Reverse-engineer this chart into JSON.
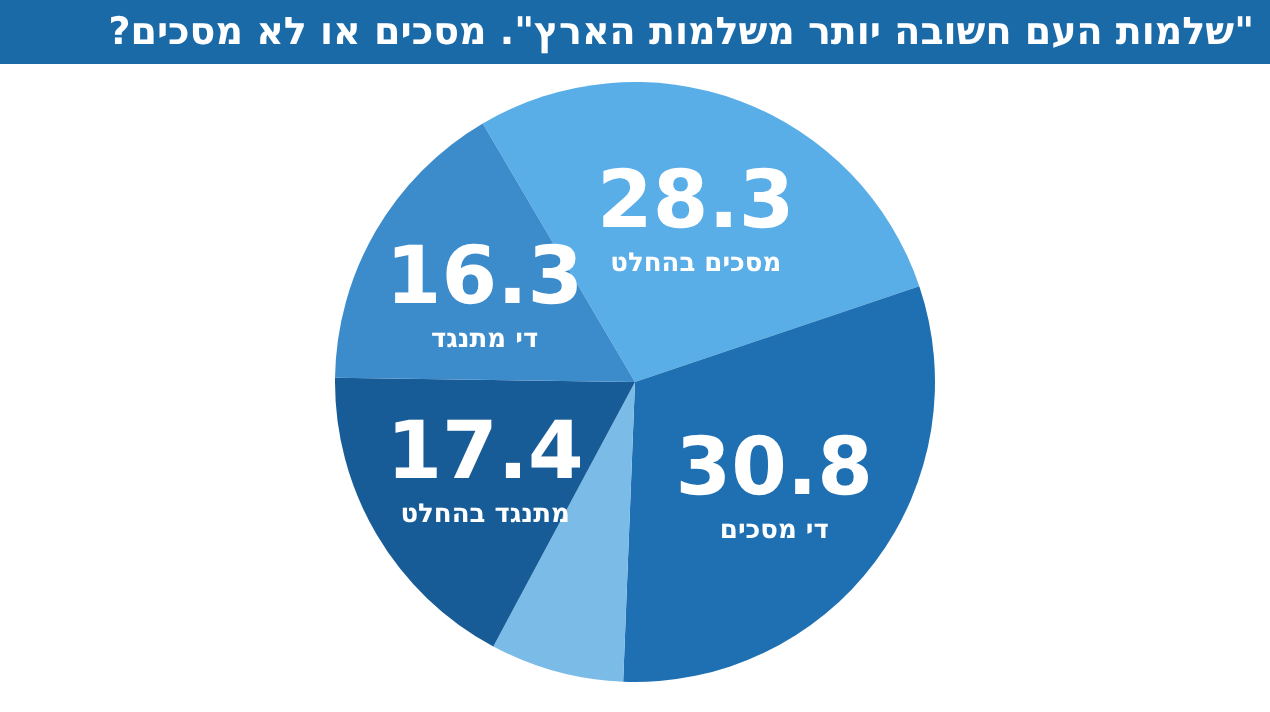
{
  "chart_data": {
    "type": "pie",
    "title": "\"שלמות העם חשובה יותר משלמות הארץ\". מסכים או לא מסכים?",
    "categories": [
      "מסכים בהחלט",
      "די מסכים",
      null,
      "מתנגד בהחלט",
      "די מתנגד"
    ],
    "values": [
      28.3,
      30.8,
      7.2,
      17.4,
      16.3
    ],
    "value_labels": [
      "28.3",
      "30.8",
      null,
      "17.4",
      "16.3"
    ],
    "colors": [
      "#5aaee8",
      "#1f70b2",
      "#7bbbe8",
      "#185c97",
      "#3c8bcb"
    ]
  }
}
